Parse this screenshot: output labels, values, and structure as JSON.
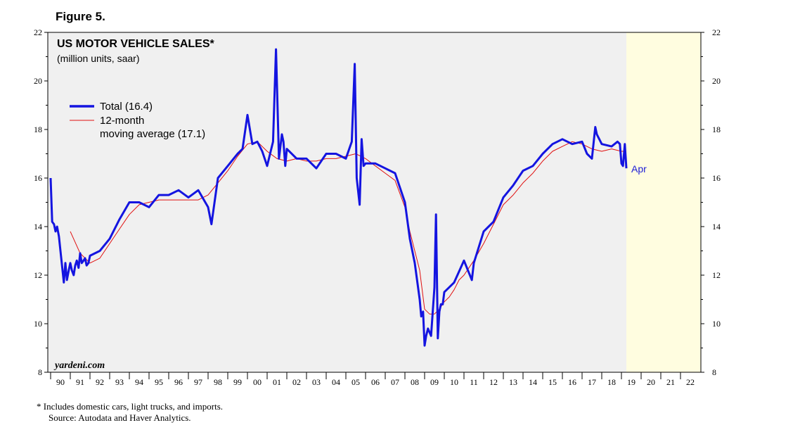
{
  "figure_label": "Figure 5.",
  "colors": {
    "plot_bg": "#fffde0",
    "history_fill": "#f0f0f0",
    "total_line": "#1414e0",
    "avg_line": "#e01010",
    "end_label": "#1b1bd6"
  },
  "footnote": "*   Includes domestic cars, light trucks, and imports.",
  "source": "Source: Autodata and Haver Analytics.",
  "chart_data": {
    "type": "line",
    "title": "US MOTOR VEHICLE SALES*",
    "subtitle": "(million units, saar)",
    "watermark": "yardeni.com",
    "end_label": "Apr",
    "ylim": [
      8,
      22
    ],
    "yticks": [
      8,
      10,
      12,
      14,
      16,
      18,
      20,
      22
    ],
    "xlim": [
      1990,
      2023
    ],
    "xtick_labels": [
      "90",
      "91",
      "92",
      "93",
      "94",
      "95",
      "96",
      "97",
      "98",
      "99",
      "00",
      "01",
      "02",
      "03",
      "04",
      "05",
      "06",
      "07",
      "08",
      "09",
      "10",
      "11",
      "12",
      "13",
      "14",
      "15",
      "16",
      "17",
      "18",
      "19",
      "20",
      "21",
      "22"
    ],
    "legend_position": "top-left",
    "series": [
      {
        "name": "Total (16.4)",
        "x": [
          1990.0,
          1990.08,
          1990.17,
          1990.25,
          1990.33,
          1990.42,
          1990.5,
          1990.58,
          1990.67,
          1990.75,
          1990.83,
          1990.92,
          1991.0,
          1991.08,
          1991.17,
          1991.25,
          1991.33,
          1991.42,
          1991.5,
          1991.58,
          1991.67,
          1991.75,
          1991.83,
          1991.92,
          1992.0,
          1992.5,
          1993.0,
          1993.5,
          1994.0,
          1994.5,
          1995.0,
          1995.5,
          1996.0,
          1996.5,
          1997.0,
          1997.5,
          1998.0,
          1998.17,
          1998.5,
          1999.0,
          1999.5,
          1999.75,
          2000.0,
          2000.25,
          2000.5,
          2000.75,
          2001.0,
          2001.3,
          2001.45,
          2001.6,
          2001.75,
          2001.83,
          2001.92,
          2002.0,
          2002.5,
          2003.0,
          2003.5,
          2004.0,
          2004.5,
          2005.0,
          2005.3,
          2005.45,
          2005.55,
          2005.7,
          2005.8,
          2005.9,
          2006.0,
          2006.5,
          2007.0,
          2007.5,
          2008.0,
          2008.25,
          2008.5,
          2008.75,
          2008.83,
          2008.92,
          2009.0,
          2009.08,
          2009.17,
          2009.33,
          2009.5,
          2009.58,
          2009.67,
          2009.75,
          2009.83,
          2009.92,
          2010.0,
          2010.5,
          2011.0,
          2011.4,
          2011.5,
          2012.0,
          2012.5,
          2013.0,
          2013.5,
          2014.0,
          2014.5,
          2015.0,
          2015.5,
          2016.0,
          2016.5,
          2017.0,
          2017.25,
          2017.5,
          2017.67,
          2017.75,
          2018.0,
          2018.5,
          2018.8,
          2018.92,
          2019.0,
          2019.08,
          2019.17,
          2019.25
        ],
        "values": [
          16.0,
          14.2,
          14.1,
          13.8,
          14.0,
          13.6,
          13.0,
          12.4,
          11.7,
          12.5,
          11.8,
          12.2,
          12.5,
          12.2,
          12.0,
          12.4,
          12.6,
          12.3,
          12.9,
          12.5,
          12.6,
          12.7,
          12.4,
          12.5,
          12.8,
          13.0,
          13.5,
          14.3,
          15.0,
          15.0,
          14.8,
          15.3,
          15.3,
          15.5,
          15.2,
          15.5,
          14.8,
          14.1,
          16.0,
          16.5,
          17.0,
          17.2,
          18.6,
          17.4,
          17.5,
          17.1,
          16.5,
          17.5,
          21.3,
          16.8,
          17.8,
          17.5,
          16.5,
          17.2,
          16.8,
          16.8,
          16.4,
          17.0,
          17.0,
          16.8,
          17.5,
          20.7,
          16.0,
          14.9,
          17.6,
          16.5,
          16.6,
          16.6,
          16.4,
          16.2,
          15.0,
          13.5,
          12.5,
          11.0,
          10.3,
          10.5,
          9.1,
          9.5,
          9.8,
          9.5,
          11.5,
          14.5,
          9.4,
          10.5,
          10.8,
          10.8,
          11.3,
          11.7,
          12.6,
          11.8,
          12.5,
          13.8,
          14.2,
          15.2,
          15.7,
          16.3,
          16.5,
          17.0,
          17.4,
          17.6,
          17.4,
          17.5,
          17.0,
          16.8,
          18.1,
          17.8,
          17.4,
          17.3,
          17.5,
          17.4,
          16.6,
          16.5,
          17.4,
          16.4
        ]
      },
      {
        "name": "12-month moving average (17.1)",
        "x": [
          1991.0,
          1991.5,
          1992.0,
          1992.5,
          1993.0,
          1993.5,
          1994.0,
          1994.5,
          1995.0,
          1995.5,
          1996.0,
          1996.5,
          1997.0,
          1997.5,
          1998.0,
          1998.5,
          1999.0,
          1999.5,
          2000.0,
          2000.5,
          2001.0,
          2001.5,
          2002.0,
          2002.5,
          2003.0,
          2003.5,
          2004.0,
          2004.5,
          2005.0,
          2005.5,
          2006.0,
          2006.5,
          2007.0,
          2007.5,
          2008.0,
          2008.25,
          2008.5,
          2008.75,
          2009.0,
          2009.25,
          2009.5,
          2009.75,
          2010.0,
          2010.25,
          2010.5,
          2010.75,
          2011.0,
          2011.5,
          2012.0,
          2012.5,
          2013.0,
          2013.5,
          2014.0,
          2014.5,
          2015.0,
          2015.5,
          2016.0,
          2016.5,
          2017.0,
          2017.5,
          2018.0,
          2018.5,
          2019.0,
          2019.25
        ],
        "values": [
          13.8,
          12.9,
          12.5,
          12.7,
          13.3,
          13.9,
          14.5,
          14.9,
          15.0,
          15.1,
          15.1,
          15.1,
          15.1,
          15.1,
          15.3,
          15.8,
          16.3,
          16.9,
          17.4,
          17.5,
          17.1,
          16.8,
          16.7,
          16.8,
          16.7,
          16.7,
          16.8,
          16.8,
          16.9,
          17.0,
          16.8,
          16.5,
          16.2,
          15.9,
          14.8,
          13.8,
          13.0,
          12.2,
          10.6,
          10.4,
          10.4,
          10.6,
          10.9,
          11.1,
          11.4,
          11.8,
          12.0,
          12.6,
          13.3,
          14.1,
          14.9,
          15.3,
          15.8,
          16.2,
          16.7,
          17.1,
          17.3,
          17.5,
          17.4,
          17.2,
          17.1,
          17.2,
          17.1,
          17.1
        ]
      }
    ]
  }
}
